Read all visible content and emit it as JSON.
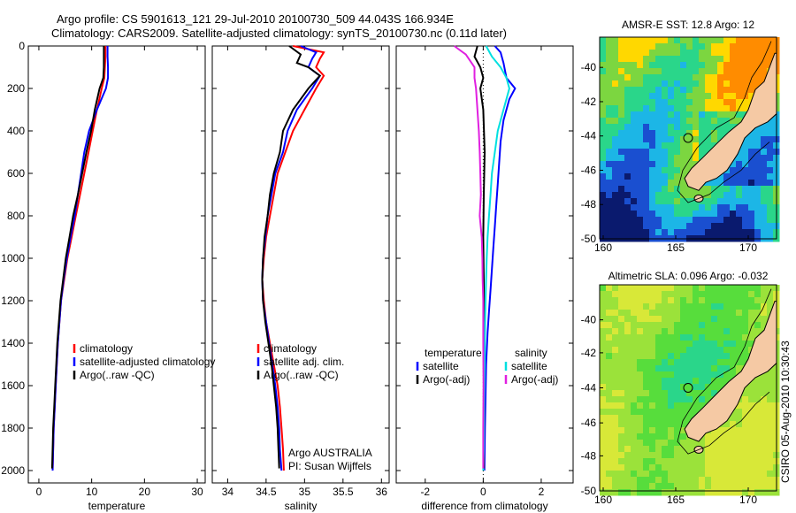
{
  "header": {
    "title_line1": "Argo profile: CS 5901613_121 29-Jul-2010 20100730_509 44.043S 166.934E",
    "title_line2": "Climatology: CARS2009. Satellite-adjusted climatology: synTS_20100730.nc (0.11d later)"
  },
  "stamp": "CSIRO 05-Aug-2010 10:30:43",
  "chart_data": [
    {
      "type": "line",
      "id": "temperature",
      "xlabel": "temperature",
      "ylabel": "",
      "xlim": [
        -2,
        31.5
      ],
      "ylim": [
        0,
        2000
      ],
      "y_reversed": true,
      "xticks": [
        0,
        10,
        20,
        30
      ],
      "yticks": [
        0,
        200,
        400,
        600,
        800,
        1000,
        1200,
        1400,
        1600,
        1800,
        2000
      ],
      "legend": [
        "climatology",
        "satellite-adjusted climatology",
        "Argo(..raw -QC)"
      ],
      "legend_position": "lower-right",
      "series": [
        {
          "name": "climatology",
          "color": "#ff0000",
          "points": [
            [
              12.6,
              0
            ],
            [
              12.6,
              50
            ],
            [
              12.5,
              100
            ],
            [
              12.4,
              150
            ],
            [
              11.9,
              200
            ],
            [
              11.0,
              300
            ],
            [
              10.2,
              400
            ],
            [
              9.4,
              500
            ],
            [
              8.6,
              600
            ],
            [
              7.8,
              700
            ],
            [
              7.0,
              800
            ],
            [
              6.2,
              900
            ],
            [
              5.4,
              1000
            ],
            [
              4.8,
              1100
            ],
            [
              4.2,
              1200
            ],
            [
              3.9,
              1300
            ],
            [
              3.6,
              1400
            ],
            [
              3.4,
              1500
            ],
            [
              3.2,
              1600
            ],
            [
              3.0,
              1700
            ],
            [
              2.8,
              1800
            ],
            [
              2.7,
              1900
            ],
            [
              2.6,
              2000
            ]
          ]
        },
        {
          "name": "satellite-adjusted climatology",
          "color": "#0000ff",
          "points": [
            [
              13.0,
              0
            ],
            [
              13.0,
              50
            ],
            [
              13.1,
              100
            ],
            [
              13.1,
              150
            ],
            [
              12.7,
              200
            ],
            [
              11.0,
              300
            ],
            [
              9.5,
              400
            ],
            [
              8.6,
              500
            ],
            [
              8.0,
              600
            ],
            [
              7.4,
              700
            ],
            [
              6.8,
              800
            ],
            [
              6.0,
              900
            ],
            [
              5.3,
              1000
            ],
            [
              4.7,
              1100
            ],
            [
              4.2,
              1200
            ],
            [
              3.9,
              1300
            ],
            [
              3.6,
              1400
            ],
            [
              3.4,
              1500
            ],
            [
              3.2,
              1600
            ],
            [
              3.0,
              1700
            ],
            [
              2.8,
              1800
            ],
            [
              2.7,
              1900
            ],
            [
              2.6,
              2000
            ]
          ]
        },
        {
          "name": "Argo(..raw -QC)",
          "color": "#000000",
          "points": [
            [
              12.3,
              0
            ],
            [
              12.3,
              50
            ],
            [
              12.3,
              100
            ],
            [
              12.2,
              150
            ],
            [
              11.5,
              200
            ],
            [
              10.6,
              300
            ],
            [
              9.9,
              400
            ],
            [
              9.0,
              500
            ],
            [
              8.2,
              600
            ],
            [
              7.4,
              700
            ],
            [
              6.5,
              800
            ],
            [
              5.8,
              900
            ],
            [
              5.1,
              1000
            ],
            [
              4.6,
              1100
            ],
            [
              4.1,
              1200
            ],
            [
              3.8,
              1300
            ],
            [
              3.5,
              1400
            ],
            [
              3.3,
              1500
            ],
            [
              3.1,
              1600
            ],
            [
              2.9,
              1700
            ],
            [
              2.7,
              1800
            ],
            [
              2.6,
              1900
            ],
            [
              2.5,
              1990
            ]
          ]
        }
      ]
    },
    {
      "type": "line",
      "id": "salinity",
      "xlabel": "salinity",
      "ylabel": "",
      "xlim": [
        33.8,
        36.1
      ],
      "ylim": [
        0,
        2000
      ],
      "y_reversed": true,
      "xticks": [
        34,
        34.5,
        35,
        35.5,
        36
      ],
      "legend": [
        "climatology",
        "satellite adj. clim.",
        "Argo(..raw -QC)"
      ],
      "legend_position": "lower-right",
      "annotation": [
        "Argo AUSTRALIA",
        "PI: Susan Wijffels"
      ],
      "series": [
        {
          "name": "climatology",
          "color": "#ff0000",
          "points": [
            [
              34.85,
              0
            ],
            [
              35.25,
              30
            ],
            [
              35.2,
              60
            ],
            [
              35.15,
              100
            ],
            [
              35.25,
              140
            ],
            [
              35.15,
              200
            ],
            [
              35.0,
              300
            ],
            [
              34.85,
              400
            ],
            [
              34.75,
              500
            ],
            [
              34.65,
              600
            ],
            [
              34.6,
              700
            ],
            [
              34.55,
              800
            ],
            [
              34.5,
              900
            ],
            [
              34.47,
              1000
            ],
            [
              34.45,
              1100
            ],
            [
              34.47,
              1200
            ],
            [
              34.5,
              1300
            ],
            [
              34.55,
              1400
            ],
            [
              34.6,
              1500
            ],
            [
              34.65,
              1600
            ],
            [
              34.68,
              1700
            ],
            [
              34.7,
              1800
            ],
            [
              34.72,
              1900
            ],
            [
              34.73,
              2000
            ]
          ]
        },
        {
          "name": "satellite adj. clim.",
          "color": "#0000ff",
          "points": [
            [
              34.95,
              0
            ],
            [
              35.15,
              30
            ],
            [
              35.1,
              60
            ],
            [
              35.05,
              100
            ],
            [
              35.2,
              140
            ],
            [
              35.1,
              200
            ],
            [
              34.9,
              300
            ],
            [
              34.78,
              400
            ],
            [
              34.72,
              500
            ],
            [
              34.62,
              600
            ],
            [
              34.57,
              700
            ],
            [
              34.52,
              800
            ],
            [
              34.49,
              900
            ],
            [
              34.46,
              1000
            ],
            [
              34.45,
              1100
            ],
            [
              34.46,
              1200
            ],
            [
              34.5,
              1300
            ],
            [
              34.54,
              1400
            ],
            [
              34.58,
              1500
            ],
            [
              34.62,
              1600
            ],
            [
              34.65,
              1700
            ],
            [
              34.67,
              1800
            ],
            [
              34.68,
              1900
            ],
            [
              34.7,
              2000
            ]
          ]
        },
        {
          "name": "Argo(..raw -QC)",
          "color": "#000000",
          "points": [
            [
              34.8,
              0
            ],
            [
              34.95,
              40
            ],
            [
              34.9,
              80
            ],
            [
              35.05,
              100
            ],
            [
              35.2,
              140
            ],
            [
              35.05,
              200
            ],
            [
              34.85,
              300
            ],
            [
              34.72,
              400
            ],
            [
              34.68,
              500
            ],
            [
              34.6,
              600
            ],
            [
              34.55,
              700
            ],
            [
              34.52,
              800
            ],
            [
              34.48,
              900
            ],
            [
              34.46,
              1000
            ],
            [
              34.45,
              1100
            ],
            [
              34.46,
              1200
            ],
            [
              34.49,
              1300
            ],
            [
              34.53,
              1400
            ],
            [
              34.57,
              1500
            ],
            [
              34.6,
              1600
            ],
            [
              34.63,
              1700
            ],
            [
              34.65,
              1800
            ],
            [
              34.66,
              1900
            ],
            [
              34.67,
              1990
            ]
          ]
        }
      ]
    },
    {
      "type": "line",
      "id": "difference",
      "xlabel": "difference from climatology",
      "ylabel": "",
      "xlim": [
        -3,
        3.1
      ],
      "ylim": [
        0,
        2000
      ],
      "y_reversed": true,
      "xticks": [
        -2,
        0,
        2
      ],
      "legend_left_title": "temperature",
      "legend_right_title": "salinity",
      "legend_left": [
        "satellite",
        "Argo(-adj)"
      ],
      "legend_right": [
        "satellite",
        "Argo(-adj)"
      ],
      "legend_position": "lower-center",
      "series": [
        {
          "name": "temperature satellite",
          "color": "#0000ff",
          "points": [
            [
              0.4,
              0
            ],
            [
              0.6,
              30
            ],
            [
              0.7,
              80
            ],
            [
              0.8,
              150
            ],
            [
              1.1,
              200
            ],
            [
              0.9,
              250
            ],
            [
              0.7,
              350
            ],
            [
              0.6,
              450
            ],
            [
              0.55,
              550
            ],
            [
              0.5,
              650
            ],
            [
              0.45,
              750
            ],
            [
              0.4,
              850
            ],
            [
              0.35,
              950
            ],
            [
              0.3,
              1050
            ],
            [
              0.25,
              1150
            ],
            [
              0.2,
              1250
            ],
            [
              0.15,
              1350
            ],
            [
              0.1,
              1500
            ],
            [
              0.08,
              1650
            ],
            [
              0.06,
              1800
            ],
            [
              0.05,
              1900
            ],
            [
              0.04,
              2000
            ]
          ]
        },
        {
          "name": "temperature Argo(-adj)",
          "color": "#000000",
          "points": [
            [
              -0.2,
              0
            ],
            [
              -0.3,
              50
            ],
            [
              -0.1,
              100
            ],
            [
              0.0,
              150
            ],
            [
              -0.1,
              200
            ],
            [
              0.0,
              300
            ],
            [
              0.05,
              500
            ],
            [
              0.02,
              700
            ],
            [
              0.0,
              900
            ],
            [
              0.02,
              1100
            ],
            [
              0.03,
              1300
            ],
            [
              0.02,
              1500
            ],
            [
              0.03,
              1700
            ],
            [
              0.02,
              1900
            ],
            [
              0.02,
              1990
            ]
          ]
        },
        {
          "name": "salinity satellite",
          "color": "#00e0e0",
          "points": [
            [
              0.1,
              0
            ],
            [
              0.3,
              50
            ],
            [
              0.6,
              100
            ],
            [
              0.8,
              150
            ],
            [
              0.9,
              200
            ],
            [
              0.7,
              300
            ],
            [
              0.5,
              400
            ],
            [
              0.4,
              500
            ],
            [
              0.3,
              600
            ],
            [
              0.25,
              700
            ],
            [
              0.2,
              800
            ],
            [
              0.15,
              900
            ],
            [
              0.12,
              1000
            ],
            [
              0.1,
              1100
            ],
            [
              0.08,
              1200
            ],
            [
              0.06,
              1350
            ],
            [
              0.05,
              1500
            ],
            [
              0.03,
              1700
            ],
            [
              0.02,
              1900
            ],
            [
              0.0,
              2000
            ]
          ]
        },
        {
          "name": "salinity Argo(-adj)",
          "color": "#e020e0",
          "points": [
            [
              -1.0,
              0
            ],
            [
              -0.6,
              40
            ],
            [
              -0.3,
              100
            ],
            [
              -0.3,
              150
            ],
            [
              -0.25,
              200
            ],
            [
              -0.2,
              300
            ],
            [
              -0.15,
              400
            ],
            [
              -0.12,
              500
            ],
            [
              -0.1,
              600
            ],
            [
              -0.08,
              700
            ],
            [
              -0.12,
              800
            ],
            [
              -0.05,
              900
            ],
            [
              -0.03,
              1000
            ],
            [
              -0.02,
              1100
            ],
            [
              0.0,
              1200
            ],
            [
              0.0,
              1400
            ],
            [
              0.01,
              1600
            ],
            [
              0.0,
              1800
            ],
            [
              0.0,
              1990
            ]
          ]
        }
      ]
    }
  ],
  "maps": [
    {
      "id": "sst",
      "title": "AMSR-E SST: 12.8 Argo: 12",
      "xticks": [
        "160",
        "165",
        "170"
      ],
      "yticks": [
        "-40",
        "-42",
        "-44",
        "-46",
        "-48",
        "-50"
      ],
      "palette": [
        "#0a1a6e",
        "#1a4fd0",
        "#1cb6e6",
        "#2ad68a",
        "#7cd640",
        "#ffd800",
        "#ff8c00"
      ],
      "land_color": "#f5c9a4"
    },
    {
      "id": "sla",
      "title": "Altimetric SLA: 0.096 Argo: -0.032",
      "xticks": [
        "160",
        "165",
        "170"
      ],
      "yticks": [
        "-40",
        "-42",
        "-44",
        "-46",
        "-48",
        "-50"
      ],
      "palette": [
        "#2ad68a",
        "#57dd3c",
        "#9be23a",
        "#d8e838"
      ],
      "land_color": "#f5c9a4"
    }
  ]
}
